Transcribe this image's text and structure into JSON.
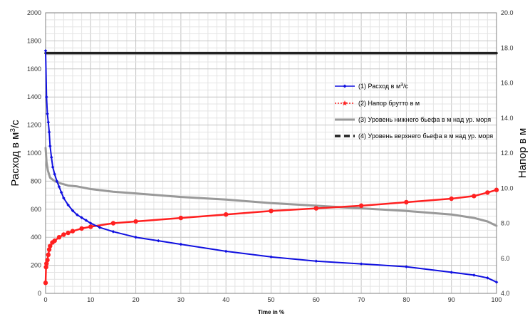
{
  "chart_data": {
    "type": "line",
    "xlabel": "Time in %",
    "ylabel_left": "Расход в м",
    "ylabel_left_sup": "3",
    "ylabel_left_suffix": "/с",
    "ylabel_right": "Напор в м",
    "xlim": [
      0,
      100
    ],
    "ylim_left": [
      0,
      2000
    ],
    "ylim_right": [
      4.0,
      20.0
    ],
    "x_ticks": [
      "0",
      "10",
      "20",
      "30",
      "40",
      "50",
      "60",
      "70",
      "80",
      "90",
      "100"
    ],
    "y_left_ticks": [
      "0",
      "200",
      "400",
      "600",
      "800",
      "1000",
      "1200",
      "1400",
      "1600",
      "1800",
      "2000"
    ],
    "y_right_ticks": [
      "4.0",
      "6.0",
      "8.0",
      "10.0",
      "12.0",
      "14.0",
      "16.0",
      "18.0",
      "20.0"
    ],
    "grid": true,
    "legend_position": "right",
    "legend": [
      {
        "label": "(1) Расход в м",
        "sup": "3",
        "suffix": "/с",
        "color": "#1010e0",
        "style": "line-marker"
      },
      {
        "label": "(2) Напор брутто в м",
        "sup": "",
        "suffix": "",
        "color": "#ff2020",
        "style": "dotted-star"
      },
      {
        "label": "(3) Уровень нижнего бьефа в м над ур. моря",
        "sup": "",
        "suffix": "",
        "color": "#999999",
        "style": "thick"
      },
      {
        "label": "(4) Уровень верхнего бьефа в м над ур. моря",
        "sup": "",
        "suffix": "",
        "color": "#222222",
        "style": "dashed"
      }
    ],
    "series": [
      {
        "name": "(1) Расход в м3/с",
        "axis": "left",
        "color": "#1010e0",
        "x": [
          0,
          0.2,
          0.4,
          0.6,
          0.8,
          1,
          1.3,
          1.6,
          2,
          2.5,
          3,
          3.5,
          4,
          5,
          6,
          7,
          8,
          9,
          10,
          12,
          15,
          20,
          25,
          30,
          40,
          50,
          60,
          70,
          80,
          90,
          95,
          98,
          100
        ],
        "values": [
          1730,
          1400,
          1280,
          1220,
          1150,
          1050,
          970,
          900,
          850,
          800,
          760,
          720,
          680,
          630,
          590,
          560,
          540,
          520,
          500,
          470,
          440,
          400,
          375,
          350,
          300,
          260,
          230,
          210,
          190,
          150,
          130,
          110,
          80
        ]
      },
      {
        "name": "(2) Напор брутто в м",
        "axis": "right",
        "color": "#ff2020",
        "x": [
          0,
          0.1,
          0.2,
          0.4,
          0.6,
          0.8,
          1,
          1.5,
          2,
          3,
          4,
          5,
          6,
          8,
          10,
          15,
          20,
          30,
          40,
          50,
          60,
          70,
          80,
          90,
          95,
          98,
          100
        ],
        "values": [
          4.6,
          5.5,
          5.7,
          5.9,
          6.2,
          6.5,
          6.7,
          6.9,
          7.0,
          7.2,
          7.35,
          7.45,
          7.55,
          7.7,
          7.8,
          8.0,
          8.1,
          8.3,
          8.5,
          8.7,
          8.85,
          9.0,
          9.2,
          9.4,
          9.55,
          9.75,
          9.9
        ]
      },
      {
        "name": "(3) Уровень нижнего бьефа в м над ур. моря",
        "axis": "right",
        "color": "#999999",
        "x": [
          0,
          0.2,
          0.5,
          1,
          2,
          3,
          5,
          7,
          10,
          15,
          20,
          30,
          40,
          50,
          60,
          70,
          80,
          90,
          95,
          98,
          100
        ],
        "values": [
          12.3,
          11.5,
          11.0,
          10.6,
          10.4,
          10.3,
          10.15,
          10.1,
          9.95,
          9.8,
          9.7,
          9.5,
          9.35,
          9.15,
          9.0,
          8.85,
          8.7,
          8.5,
          8.3,
          8.1,
          7.85
        ]
      },
      {
        "name": "(4) Уровень верхнего бьефа в м над ур. моря",
        "axis": "right",
        "color": "#222222",
        "x": [
          0,
          100
        ],
        "values": [
          17.7,
          17.7
        ]
      }
    ]
  }
}
